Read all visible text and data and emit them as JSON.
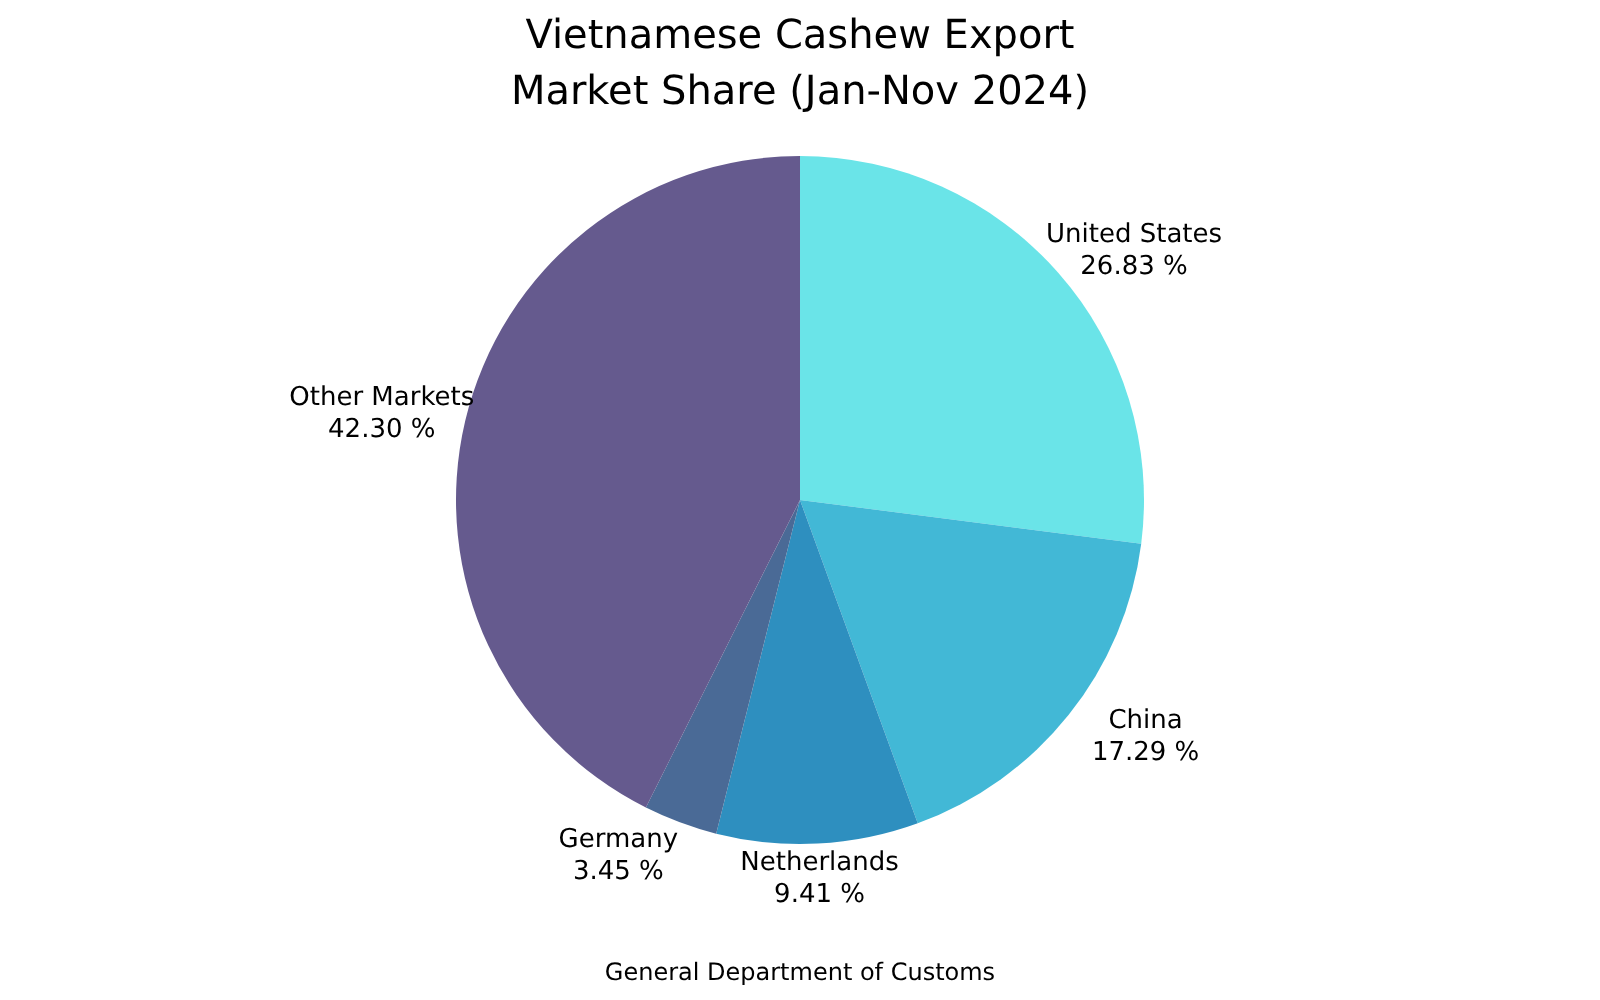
{
  "chart_data": {
    "type": "pie",
    "title": "Vietnamese Cashew Export\nMarket Share (Jan-Nov 2024)",
    "categories": [
      "United States",
      "China",
      "Netherlands",
      "Germany",
      "Other Markets"
    ],
    "values": [
      26.83,
      17.29,
      9.41,
      3.45,
      42.3
    ],
    "colors": [
      "#6ae4e8",
      "#42b8d6",
      "#2e8fbf",
      "#4a6a96",
      "#655a8e"
    ],
    "value_labels": [
      "26.83 %",
      "17.29 %",
      "9.41 %",
      "3.45 %",
      "42.30 %"
    ],
    "annotations": [
      "General Department of Customs"
    ],
    "legend": false
  }
}
